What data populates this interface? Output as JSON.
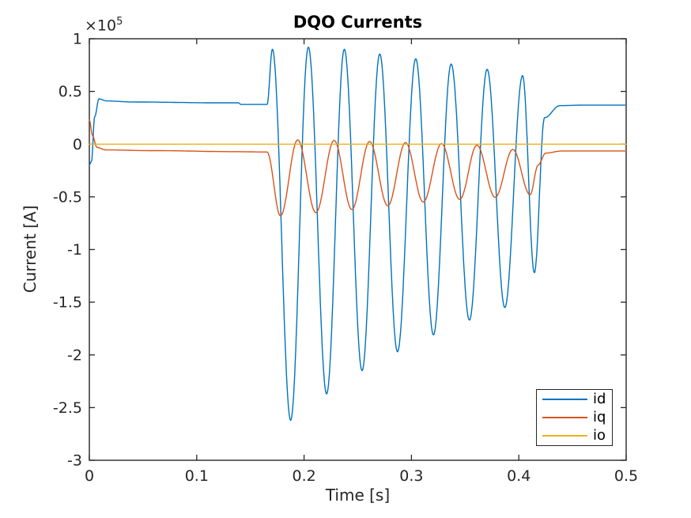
{
  "figure": {
    "background": "#ffffff",
    "axis_color": "#262626",
    "title_color": "#000000"
  },
  "chart_data": {
    "type": "line",
    "title": "DQO Currents",
    "xlabel": "Time [s]",
    "ylabel": "Current [A]",
    "y_exponent_base": "×10",
    "y_exponent_power": "5",
    "xlim": [
      0,
      0.5
    ],
    "ylim": [
      -300000,
      100000
    ],
    "x_ticks": [
      0,
      0.1,
      0.2,
      0.3,
      0.4,
      0.5
    ],
    "x_tick_labels": [
      "0",
      "0.1",
      "0.2",
      "0.3",
      "0.4",
      "0.5"
    ],
    "y_ticks": [
      100000,
      50000,
      0,
      -50000,
      -100000,
      -150000,
      -200000,
      -250000,
      -300000
    ],
    "y_tick_labels": [
      "1",
      "0.5",
      "0",
      "-0.5",
      "-1",
      "-1.5",
      "-2",
      "-2.5",
      "-3"
    ],
    "grid": false,
    "legend_position": "southeast",
    "series": [
      {
        "name": "id",
        "color": "#0072BD",
        "points": [
          [
            0.0,
            -20000
          ],
          [
            0.002,
            -16000
          ],
          [
            0.005,
            26000
          ],
          [
            0.009,
            43000
          ],
          [
            0.016,
            41000
          ],
          [
            0.04,
            40000
          ],
          [
            0.12,
            39200
          ],
          [
            0.139,
            39200
          ],
          [
            0.141,
            37600
          ],
          [
            0.1655,
            37600
          ],
          [
            0.1705,
            90000
          ],
          [
            0.1875,
            -262000
          ],
          [
            0.204,
            92000
          ],
          [
            0.221,
            -237000
          ],
          [
            0.2375,
            90000
          ],
          [
            0.254,
            -215000
          ],
          [
            0.2705,
            85500
          ],
          [
            0.287,
            -197000
          ],
          [
            0.304,
            81000
          ],
          [
            0.3205,
            -181000
          ],
          [
            0.337,
            76000
          ],
          [
            0.354,
            -167000
          ],
          [
            0.3705,
            71000
          ],
          [
            0.387,
            -155000
          ],
          [
            0.4035,
            65000
          ],
          [
            0.4145,
            -122000
          ],
          [
            0.424,
            25000
          ],
          [
            0.438,
            36500
          ],
          [
            0.46,
            37000
          ],
          [
            0.5,
            37000
          ]
        ]
      },
      {
        "name": "iq",
        "color": "#D95319",
        "points": [
          [
            0.0,
            23000
          ],
          [
            0.003,
            8000
          ],
          [
            0.007,
            -3000
          ],
          [
            0.015,
            -5500
          ],
          [
            0.06,
            -6200
          ],
          [
            0.14,
            -7200
          ],
          [
            0.1655,
            -7500
          ],
          [
            0.178,
            -68000
          ],
          [
            0.194,
            4000
          ],
          [
            0.211,
            -65000
          ],
          [
            0.228,
            3500
          ],
          [
            0.2445,
            -62000
          ],
          [
            0.261,
            2500
          ],
          [
            0.278,
            -58500
          ],
          [
            0.2945,
            1500
          ],
          [
            0.311,
            -55000
          ],
          [
            0.328,
            500
          ],
          [
            0.345,
            -52500
          ],
          [
            0.361,
            -1000
          ],
          [
            0.378,
            -50500
          ],
          [
            0.3945,
            -5000
          ],
          [
            0.4105,
            -48000
          ],
          [
            0.418,
            -20000
          ],
          [
            0.425,
            -8500
          ],
          [
            0.44,
            -6500
          ],
          [
            0.5,
            -6500
          ]
        ]
      },
      {
        "name": "io",
        "color": "#EDB120",
        "points": [
          [
            0.0,
            0
          ],
          [
            0.5,
            0
          ]
        ]
      }
    ]
  }
}
